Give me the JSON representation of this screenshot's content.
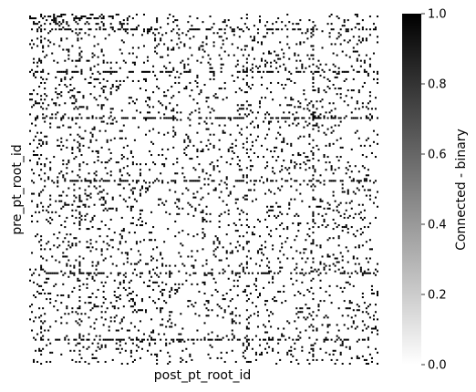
{
  "chart_data": {
    "type": "heatmap",
    "title": "",
    "xlabel": "post_pt_root_id",
    "ylabel": "pre_pt_root_id",
    "xticks_visible": false,
    "yticks_visible": false,
    "value_type": "binary",
    "value_range": [
      0,
      1
    ],
    "cell_grid": {
      "rows": 190,
      "cols": 190
    },
    "connected_fraction_estimate": 0.08,
    "colormap": {
      "low": "#ffffff",
      "high": "#000000",
      "name": "Greys"
    },
    "colorbar": {
      "label": "Connected - binary",
      "position": "right",
      "ticks": [
        0.0,
        0.2,
        0.4,
        0.6,
        0.8,
        1.0
      ],
      "tick_labels": [
        "0.0",
        "0.2",
        "0.4",
        "0.6",
        "0.8",
        "1.0"
      ]
    },
    "dense_rows": [
      8,
      31,
      56,
      90,
      140,
      176
    ],
    "dense_cols": [
      6,
      27,
      118,
      154
    ]
  }
}
